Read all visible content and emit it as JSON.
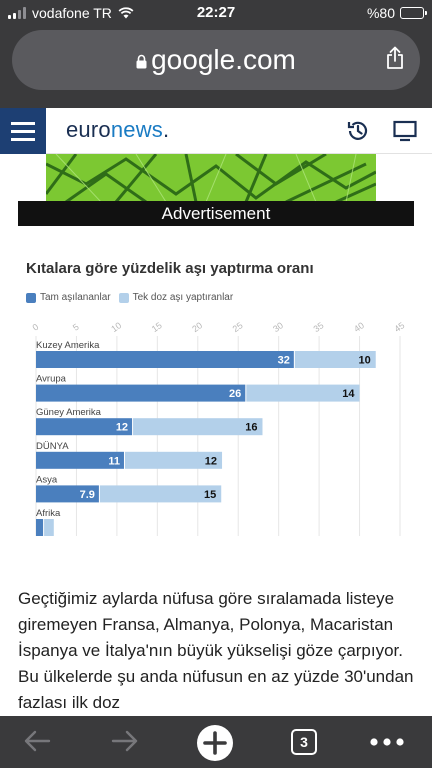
{
  "status": {
    "carrier": "vodafone TR",
    "time": "22:27",
    "battery": "%80",
    "battery_level": 0.8
  },
  "browser": {
    "url": "google.com",
    "tab_count": "3",
    "icons": [
      "lock-icon",
      "share-icon",
      "back-icon",
      "forward-icon",
      "plus-icon",
      "more-icon"
    ]
  },
  "header": {
    "logo_part1": "euro",
    "logo_part2": "news",
    "logo_dot": ".",
    "icons": [
      "hamburger-menu-icon",
      "clock-icon",
      "tv-icon"
    ],
    "colors": {
      "menu_bg": "#1d3f73",
      "brand_blue": "#1a7bc3"
    }
  },
  "ad": {
    "label": "Advertisement",
    "image_color": "#7cc832"
  },
  "chart_data": {
    "type": "bar",
    "stacked": true,
    "orientation": "horizontal",
    "title": "Kıtalara göre yüzdelik aşı yaptırma oranı",
    "categories": [
      "Kuzey Amerika",
      "Avrupa",
      "Güney Amerika",
      "DÜNYA",
      "Asya",
      "Afrika"
    ],
    "series": [
      {
        "name": "Tam aşılananlar",
        "color": "#4a7fbe",
        "values": [
          32,
          26,
          12,
          11,
          7.9,
          1
        ],
        "labels": [
          "32",
          "26",
          "12",
          "11",
          "7.9",
          ""
        ]
      },
      {
        "name": "Tek doz aşı yaptıranlar",
        "color": "#b3d0ea",
        "values": [
          10,
          14,
          16,
          12,
          15,
          1.2
        ],
        "labels": [
          "10",
          "14",
          "16",
          "12",
          "15",
          ""
        ]
      }
    ],
    "xlim": [
      0,
      45
    ],
    "xticks": [
      0,
      5,
      10,
      15,
      20,
      25,
      30,
      35,
      40,
      45
    ],
    "grid": true,
    "legend": "top-left"
  },
  "article": {
    "text": "Geçtiğimiz aylarda nüfusa göre sıralamada listeye giremeyen Fransa, Almanya, Polonya, Macaristan İspanya ve İtalya'nın büyük yükselişi göze çarpıyor. Bu ülkelerde şu anda nüfusun en az yüzde 30'undan fazlası ilk doz"
  }
}
